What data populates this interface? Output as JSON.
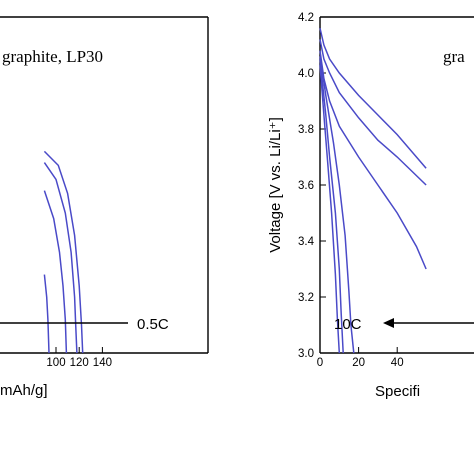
{
  "chart_data": [
    {
      "type": "line",
      "panel": "left",
      "annotation": "graphite, LP30",
      "rate_label": "0.5C",
      "xlabel": "mAh/g]",
      "x_ticks": [
        "100",
        "120",
        "140"
      ],
      "x_range": [
        90,
        145
      ],
      "y_range": [
        3.0,
        4.2
      ],
      "series": [
        {
          "x": [
            90,
            92,
            93,
            94
          ],
          "y": [
            3.28,
            3.2,
            3.12,
            3.0
          ]
        },
        {
          "x": [
            90,
            98,
            103,
            106,
            108,
            109
          ],
          "y": [
            3.58,
            3.48,
            3.36,
            3.24,
            3.12,
            3.0
          ]
        },
        {
          "x": [
            90,
            100,
            108,
            113,
            116,
            117,
            118
          ],
          "y": [
            3.68,
            3.62,
            3.5,
            3.36,
            3.2,
            3.1,
            3.0
          ]
        },
        {
          "x": [
            90,
            102,
            110,
            116,
            120,
            122,
            123
          ],
          "y": [
            3.72,
            3.67,
            3.57,
            3.42,
            3.24,
            3.1,
            3.0
          ]
        }
      ],
      "grid": false
    },
    {
      "type": "line",
      "panel": "right",
      "annotation": "gra",
      "rate_label": "10C",
      "xlabel": "Specifi",
      "ylabel": "Voltage [V vs. Li/Li⁺]",
      "x_ticks": [
        "0",
        "20",
        "40"
      ],
      "y_ticks": [
        "3.0",
        "3.2",
        "3.4",
        "3.6",
        "3.8",
        "4.0",
        "4.2"
      ],
      "x_range": [
        0,
        55
      ],
      "y_range": [
        3.0,
        4.2
      ],
      "series": [
        {
          "x": [
            0,
            2,
            5,
            10,
            20,
            30,
            40,
            55
          ],
          "y": [
            4.16,
            4.1,
            4.05,
            4.0,
            3.92,
            3.85,
            3.78,
            3.66
          ]
        },
        {
          "x": [
            0,
            2,
            5,
            10,
            20,
            30,
            40,
            55
          ],
          "y": [
            4.12,
            4.05,
            4.0,
            3.93,
            3.84,
            3.76,
            3.7,
            3.6
          ]
        },
        {
          "x": [
            0,
            2,
            5,
            10,
            20,
            30,
            40,
            50,
            55
          ],
          "y": [
            4.08,
            3.98,
            3.9,
            3.81,
            3.7,
            3.6,
            3.5,
            3.38,
            3.3
          ]
        },
        {
          "x": [
            0,
            3,
            7,
            10,
            13,
            15,
            16,
            17.5
          ],
          "y": [
            4.06,
            3.92,
            3.75,
            3.6,
            3.42,
            3.22,
            3.1,
            3.0
          ]
        },
        {
          "x": [
            0,
            3,
            5,
            8,
            10,
            11,
            12
          ],
          "y": [
            4.05,
            3.85,
            3.7,
            3.5,
            3.3,
            3.14,
            3.0
          ]
        },
        {
          "x": [
            0,
            2,
            4,
            6,
            8,
            9,
            10
          ],
          "y": [
            4.03,
            3.85,
            3.68,
            3.5,
            3.28,
            3.12,
            3.0
          ]
        }
      ],
      "grid": false
    }
  ]
}
